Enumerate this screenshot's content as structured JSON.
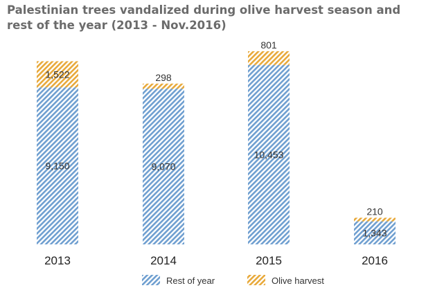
{
  "chart_data": {
    "type": "bar",
    "stacked": true,
    "title": "Palestinian trees vandalized during olive harvest season and rest of the year (2013 - Nov.2016)",
    "categories": [
      "2013",
      "2014",
      "2015",
      "2016"
    ],
    "series": [
      {
        "name": "Rest of year",
        "color": "#6f9fd0",
        "values": [
          9150,
          9070,
          10453,
          1343
        ],
        "labels": [
          "9,150",
          "9,070",
          "10,453",
          "1,343"
        ]
      },
      {
        "name": "Olive harvest",
        "color": "#e8a93a",
        "values": [
          1522,
          298,
          801,
          210
        ],
        "labels": [
          "1,522",
          "298",
          "801",
          "210"
        ]
      }
    ],
    "ylim": [
      0,
      11254
    ],
    "grid": false,
    "legend_position": "bottom",
    "pattern": "diagonal-hatch"
  }
}
